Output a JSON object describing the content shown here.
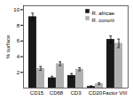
{
  "chart_data": {
    "type": "bar",
    "categories": [
      "CD15",
      "CD68",
      "CD3",
      "CD20",
      "Factor VIII"
    ],
    "series": [
      {
        "name": "R. africae",
        "color": "#1a1a1a",
        "values": [
          9.1,
          1.3,
          1.6,
          0.2,
          6.2
        ],
        "errors": [
          0.45,
          0.2,
          0.25,
          0.08,
          0.45
        ]
      },
      {
        "name": "R. conorii",
        "color": "#b0b0b0",
        "values": [
          2.5,
          3.1,
          2.4,
          0.55,
          5.7
        ],
        "errors": [
          0.25,
          0.25,
          0.2,
          0.12,
          0.55
        ]
      }
    ],
    "ylabel": "% surface",
    "ylim": [
      0,
      10.5
    ],
    "yticks": [
      2,
      4,
      6,
      8,
      10
    ],
    "legend": "upper right"
  }
}
